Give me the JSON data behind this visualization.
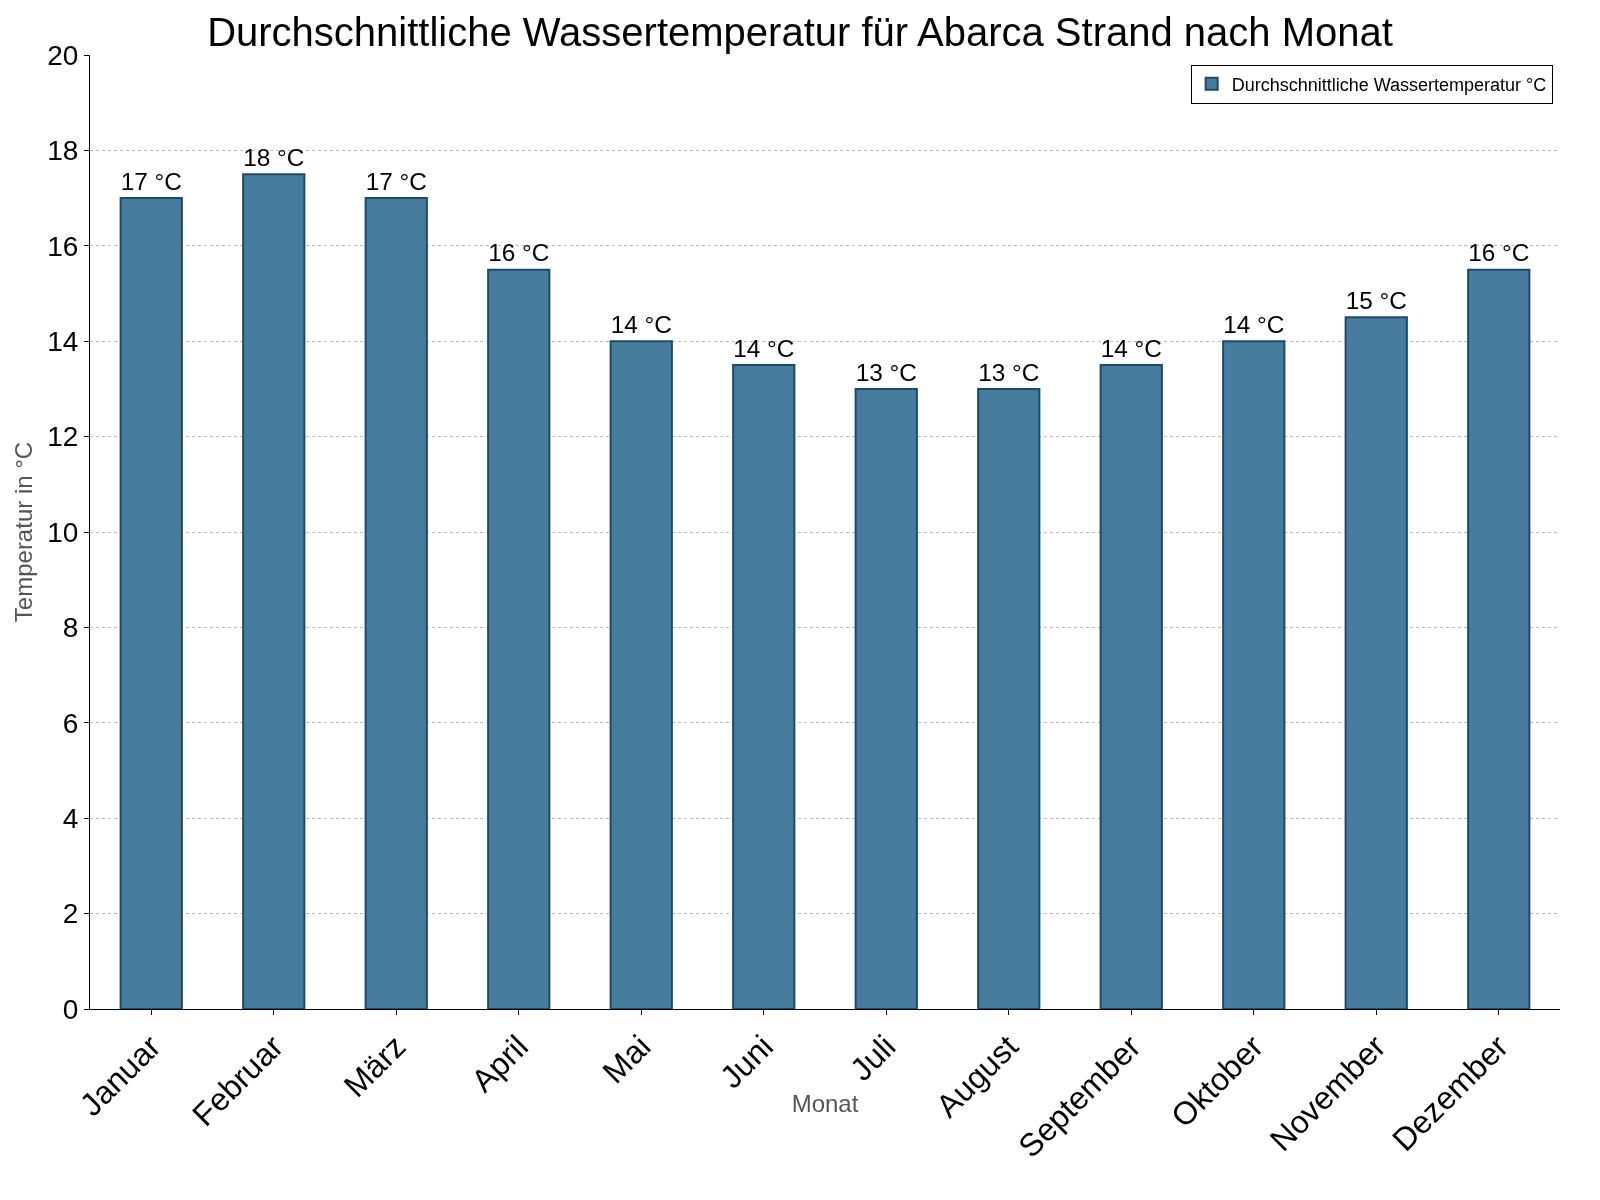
{
  "chart_data": {
    "type": "bar",
    "title": "Durchschnittliche Wassertemperatur für Abarca Strand nach Monat",
    "xlabel": "Monat",
    "ylabel": "Temperatur in °C",
    "categories": [
      "Januar",
      "Februar",
      "März",
      "April",
      "Mai",
      "Juni",
      "Juli",
      "August",
      "September",
      "Oktober",
      "November",
      "Dezember"
    ],
    "series": [
      {
        "name": "Durchschnittliche Wassertemperatur °C",
        "color": "#467c9e",
        "values": [
          17,
          17.5,
          17,
          15.5,
          14,
          13.5,
          13,
          13,
          13.5,
          14,
          14.5,
          15.5
        ],
        "value_labels": [
          "17 °C",
          "18 °C",
          "17 °C",
          "16 °C",
          "14 °C",
          "14 °C",
          "13 °C",
          "13 °C",
          "14 °C",
          "14 °C",
          "15 °C",
          "16 °C"
        ]
      }
    ],
    "ylim": [
      0,
      20
    ],
    "yticks": [
      0,
      2,
      4,
      6,
      8,
      10,
      12,
      14,
      16,
      18,
      20
    ],
    "grid": "y",
    "legend": "top right"
  }
}
